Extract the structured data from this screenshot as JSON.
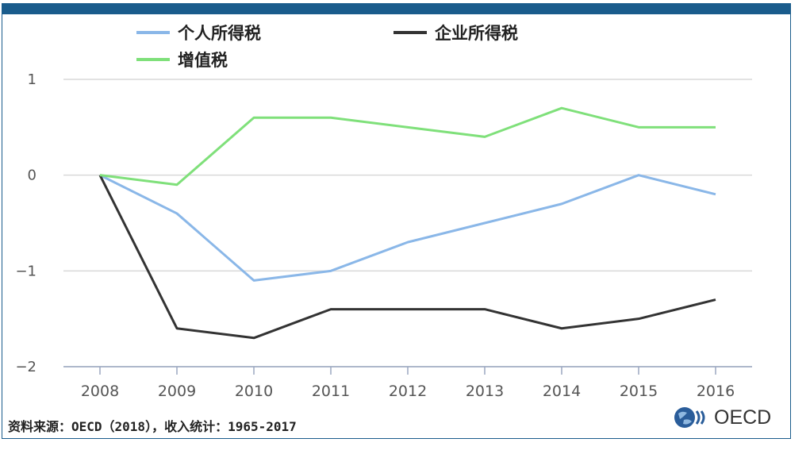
{
  "legend": [
    {
      "label": "个人所得税",
      "color": "#8ab7e8"
    },
    {
      "label": "企业所得税",
      "color": "#333333"
    },
    {
      "label": "增值税",
      "color": "#7fe07a"
    }
  ],
  "source": "资料来源：OECD（2018），收入统计：1965-2017",
  "logo": {
    "text": "OECD"
  },
  "chart_data": {
    "type": "line",
    "x": [
      "2008",
      "2009",
      "2010",
      "2011",
      "2012",
      "2013",
      "2014",
      "2015",
      "2016"
    ],
    "ylim": [
      -2,
      1
    ],
    "yticks": [
      1,
      0,
      -1,
      -2
    ],
    "ytick_labels": [
      "1",
      "0",
      "−1",
      "−2"
    ],
    "grid": true,
    "legend_position": "top",
    "series": [
      {
        "name": "个人所得税",
        "color": "#8ab7e8",
        "values": [
          0,
          -0.4,
          -1.1,
          -1.0,
          -0.7,
          -0.5,
          -0.3,
          0.0,
          -0.2
        ]
      },
      {
        "name": "企业所得税",
        "color": "#333333",
        "values": [
          0,
          -1.6,
          -1.7,
          -1.4,
          -1.4,
          -1.4,
          -1.6,
          -1.5,
          -1.3
        ]
      },
      {
        "name": "增值税",
        "color": "#7fe07a",
        "values": [
          0,
          -0.1,
          0.6,
          0.6,
          0.5,
          0.4,
          0.7,
          0.5,
          0.5
        ]
      }
    ]
  }
}
